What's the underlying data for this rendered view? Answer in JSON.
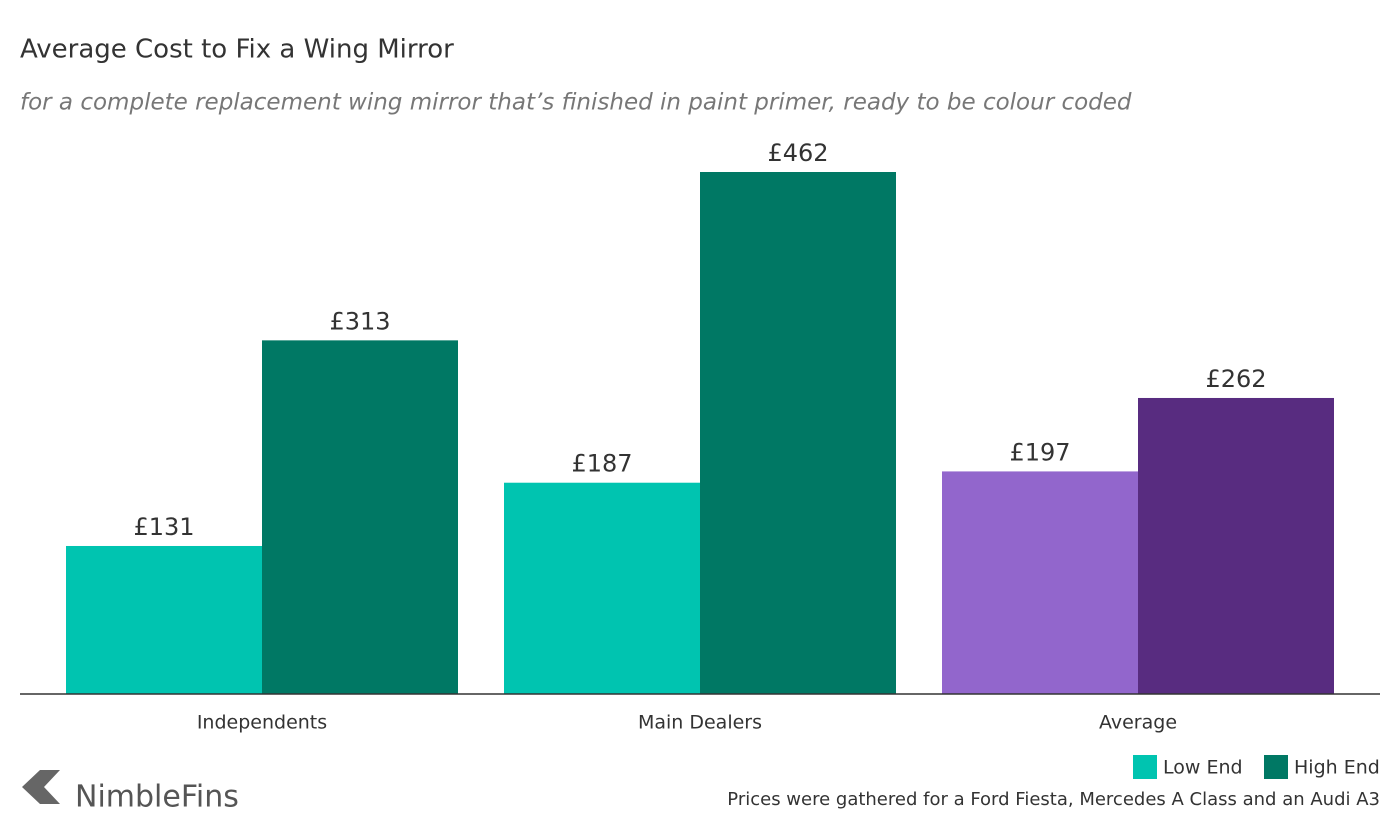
{
  "chart_data": {
    "type": "bar",
    "title": "Average Cost to Fix a Wing Mirror",
    "subtitle": "for a complete replacement wing mirror that’s finished in paint primer, ready to be colour coded",
    "categories": [
      "Independents",
      "Main Dealers",
      "Average"
    ],
    "series": [
      {
        "name": "Low End",
        "color": "#00c4b0",
        "colors": [
          "#00c4b0",
          "#00c4b0",
          "#9266cc"
        ],
        "values": [
          131,
          187,
          197
        ],
        "value_labels": [
          "£131",
          "£187",
          "£197"
        ]
      },
      {
        "name": "High End",
        "color": "#007864",
        "colors": [
          "#007864",
          "#007864",
          "#582c80"
        ],
        "values": [
          313,
          462,
          262
        ],
        "value_labels": [
          "£313",
          "£462",
          "£262"
        ]
      }
    ],
    "legend": "bottom-right",
    "footnote": "Prices were gathered for a Ford Fiesta, Mercedes A Class and an Audi A3",
    "brand": "NimbleFins"
  }
}
